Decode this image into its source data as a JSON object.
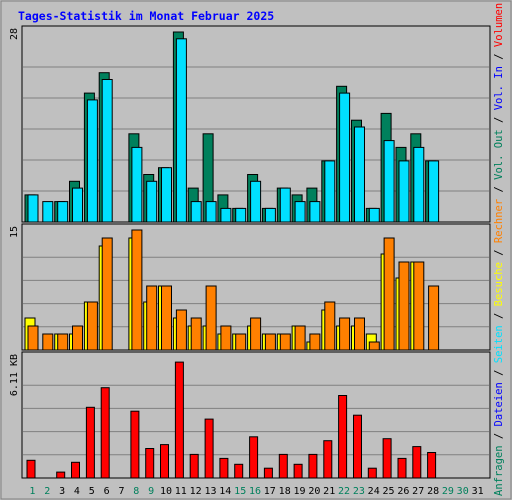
{
  "title": "Tages-Statistik im Monat Februar 2025",
  "colors": {
    "background": "#C0C0C0",
    "frame": "#808080",
    "title": "#0000FF",
    "hits": "#00805C",
    "files": "#00E0FF",
    "pages": "#00E0FF",
    "visits": "#FFFF00",
    "sites": "#FF8000",
    "kbytes": "#FF0000",
    "weekday_label": "#000000",
    "weekend_label": "#00805C"
  },
  "right_labels": [
    {
      "text": "Anfragen",
      "color": "#00805C"
    },
    {
      "text": " / ",
      "color": "#000000"
    },
    {
      "text": "Dateien",
      "color": "#0000FF"
    },
    {
      "text": " / ",
      "color": "#000000"
    },
    {
      "text": "Seiten",
      "color": "#00E0FF"
    },
    {
      "text": " / ",
      "color": "#000000"
    },
    {
      "text": "Besuche",
      "color": "#FFFF00"
    },
    {
      "text": " / ",
      "color": "#000000"
    },
    {
      "text": "Rechner",
      "color": "#FF8000"
    },
    {
      "text": " / ",
      "color": "#000000"
    },
    {
      "text": "Vol. Out",
      "color": "#00805C"
    },
    {
      "text": " / ",
      "color": "#000000"
    },
    {
      "text": "Vol. In",
      "color": "#0000FF"
    },
    {
      "text": " / ",
      "color": "#000000"
    },
    {
      "text": "Volumen",
      "color": "#FF0000"
    }
  ],
  "chart_data": {
    "type": "bar",
    "title": "Tages-Statistik im Monat Februar 2025",
    "categories": [
      "1",
      "2",
      "3",
      "4",
      "5",
      "6",
      "7",
      "8",
      "9",
      "10",
      "11",
      "12",
      "13",
      "14",
      "15",
      "16",
      "17",
      "18",
      "19",
      "20",
      "21",
      "22",
      "23",
      "24",
      "25",
      "26",
      "27",
      "28",
      "29",
      "30",
      "31"
    ],
    "weekend_days": [
      "1",
      "2",
      "8",
      "9",
      "15",
      "16",
      "22",
      "23",
      "29",
      "30"
    ],
    "panels": [
      {
        "name": "hits",
        "ymax_label": "28",
        "ylim": [
          0,
          28
        ],
        "series": [
          {
            "name": "Anfragen",
            "color": "#00805C",
            "values": [
              4,
              0,
              3,
              6,
              19,
              22,
              0,
              13,
              7,
              8,
              28,
              5,
              13,
              4,
              2,
              7,
              2,
              5,
              4,
              5,
              9,
              20,
              15,
              2,
              16,
              11,
              13,
              9,
              0,
              0,
              0
            ]
          },
          {
            "name": "Seiten",
            "color": "#00E0FF",
            "values": [
              4,
              3,
              3,
              5,
              18,
              21,
              0,
              11,
              6,
              8,
              27,
              3,
              3,
              2,
              2,
              6,
              2,
              5,
              3,
              3,
              9,
              19,
              14,
              2,
              12,
              9,
              11,
              9,
              0,
              0,
              0
            ]
          }
        ]
      },
      {
        "name": "visits",
        "ymax_label": "15",
        "ylim": [
          0,
          15
        ],
        "series": [
          {
            "name": "Besuche",
            "color": "#FFFF00",
            "values": [
              4,
              0,
              2,
              2,
              6,
              13,
              0,
              14,
              6,
              8,
              4,
              3,
              3,
              2,
              2,
              3,
              2,
              2,
              3,
              1,
              5,
              3,
              3,
              2,
              12,
              9,
              11,
              0,
              0,
              0,
              0
            ]
          },
          {
            "name": "Rechner",
            "color": "#FF8000",
            "values": [
              3,
              2,
              2,
              3,
              6,
              14,
              0,
              15,
              8,
              8,
              5,
              4,
              8,
              3,
              2,
              4,
              2,
              2,
              3,
              2,
              6,
              4,
              4,
              1,
              14,
              11,
              11,
              8,
              0,
              0,
              0
            ]
          }
        ]
      },
      {
        "name": "kbytes",
        "ymax_label": "6.11 KB",
        "ylim": [
          0,
          6.11
        ],
        "series": [
          {
            "name": "Volumen",
            "color": "#FF0000",
            "values": [
              0.9,
              0,
              0.3,
              0.8,
              3.6,
              4.6,
              0,
              3.4,
              1.5,
              1.7,
              5.9,
              1.2,
              3.0,
              1.0,
              0.7,
              2.1,
              0.5,
              1.2,
              0.7,
              1.2,
              1.9,
              4.2,
              3.2,
              0.5,
              2.0,
              1.0,
              1.6,
              1.3,
              0,
              0,
              0
            ]
          }
        ]
      }
    ]
  }
}
